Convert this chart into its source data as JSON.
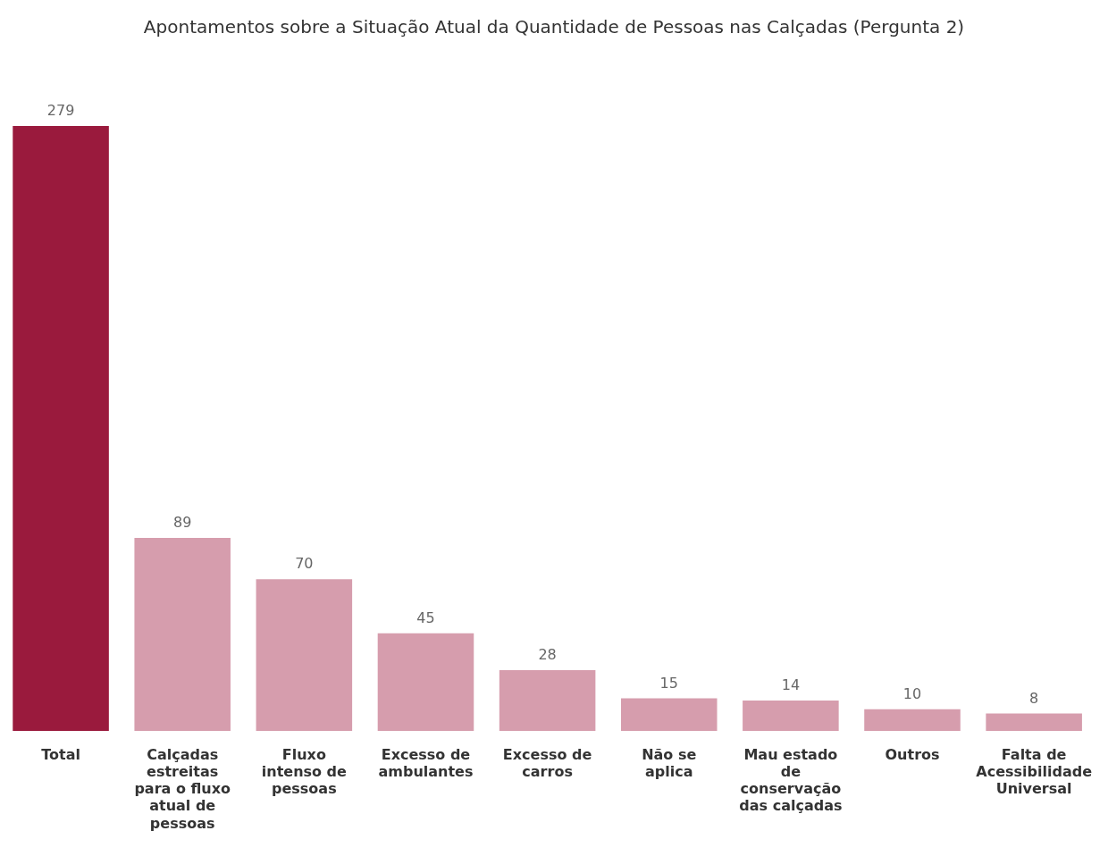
{
  "chart_data": {
    "type": "bar",
    "title": "Apontamentos sobre a Situação Atual da Quantidade de Pessoas nas Calçadas (Pergunta 2)",
    "categories": [
      "Total",
      "Calçadas estreitas para o fluxo atual de pessoas",
      "Fluxo intenso de pessoas",
      "Excesso de ambulantes",
      "Excesso de carros",
      "Não se aplica",
      "Mau estado de conservação das calçadas",
      "Outros",
      "Falta de Acessibilidade Universal"
    ],
    "values": [
      279,
      89,
      70,
      45,
      28,
      15,
      14,
      10,
      8
    ],
    "colors": [
      "#9a1a3d",
      "#d69dad",
      "#d69dad",
      "#d69dad",
      "#d69dad",
      "#d69dad",
      "#d69dad",
      "#d69dad",
      "#d69dad"
    ],
    "data_labels": true,
    "grid": false,
    "legend": false
  }
}
